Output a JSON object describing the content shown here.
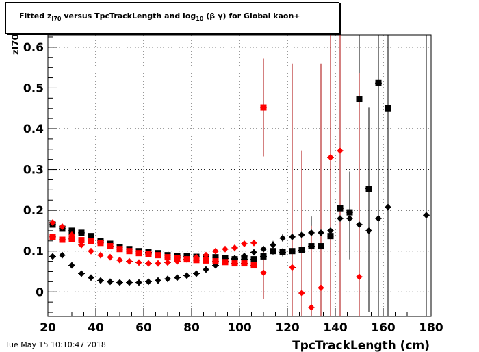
{
  "title": {
    "part1": "Fitted  z",
    "sub1": "I70",
    "part2": "  versus TpcTrackLength and log",
    "sub2": "10",
    "part3": " (β γ) for Global kaon+"
  },
  "footer": {
    "timestamp": "Tue May 15 10:10:47 2018"
  },
  "colors": {
    "black_series": "#000000",
    "red_series": "#ff0000",
    "red_errorbar": "#aa0000"
  },
  "chart_data": {
    "type": "scatter",
    "title": "Fitted  zI70  versus TpcTrackLength and log10 (β γ) for Global kaon+",
    "xlabel": "TpcTrackLength (cm)",
    "ylabel": "zI70",
    "xlim": [
      20,
      180
    ],
    "ylim": [
      -0.06,
      0.63
    ],
    "grid": true,
    "x_ticks": [
      20,
      40,
      60,
      80,
      100,
      120,
      140,
      160,
      180
    ],
    "y_ticks": [
      0,
      0.1,
      0.2,
      0.3,
      0.4,
      0.5,
      0.6
    ],
    "x_tick_labels": [
      "20",
      "40",
      "60",
      "80",
      "100",
      "120",
      "140",
      "160",
      "180"
    ],
    "y_tick_labels": [
      "0",
      "0.1",
      "0.2",
      "0.3",
      "0.4",
      "0.5",
      "0.6"
    ],
    "series": [
      {
        "marker": "square",
        "color": "#000000",
        "points": [
          [
            22,
            0.165,
            0
          ],
          [
            26,
            0.155,
            0
          ],
          [
            30,
            0.15,
            0
          ],
          [
            34,
            0.145,
            0
          ],
          [
            38,
            0.137,
            0
          ],
          [
            42,
            0.125,
            0
          ],
          [
            46,
            0.118,
            0
          ],
          [
            50,
            0.11,
            0
          ],
          [
            54,
            0.105,
            0
          ],
          [
            58,
            0.1,
            0
          ],
          [
            62,
            0.097,
            0
          ],
          [
            66,
            0.095,
            0
          ],
          [
            70,
            0.09,
            0
          ],
          [
            74,
            0.088,
            0
          ],
          [
            78,
            0.087,
            0
          ],
          [
            82,
            0.086,
            0
          ],
          [
            86,
            0.085,
            0
          ],
          [
            90,
            0.085,
            0
          ],
          [
            94,
            0.082,
            0
          ],
          [
            98,
            0.08,
            0
          ],
          [
            102,
            0.08,
            0
          ],
          [
            106,
            0.08,
            0
          ],
          [
            110,
            0.087,
            0
          ],
          [
            114,
            0.1,
            0.01
          ],
          [
            118,
            0.097,
            0.01
          ],
          [
            122,
            0.1,
            0.02
          ],
          [
            126,
            0.102,
            0.03
          ],
          [
            130,
            0.112,
            0.05
          ],
          [
            134,
            0.112,
            0.05
          ],
          [
            138,
            0.137,
            0.06
          ],
          [
            142,
            0.205,
            0.08
          ],
          [
            146,
            0.195,
            0.1
          ],
          [
            150,
            0.473,
            0.3
          ],
          [
            154,
            0.253,
            0.2
          ],
          [
            158,
            0.512,
            0.5
          ],
          [
            162,
            0.45,
            0.5
          ]
        ]
      },
      {
        "marker": "diamond",
        "color": "#000000",
        "points": [
          [
            22,
            0.087,
            0
          ],
          [
            26,
            0.09,
            0
          ],
          [
            30,
            0.065,
            0
          ],
          [
            34,
            0.045,
            0
          ],
          [
            38,
            0.035,
            0
          ],
          [
            42,
            0.028,
            0
          ],
          [
            46,
            0.025,
            0
          ],
          [
            50,
            0.023,
            0
          ],
          [
            54,
            0.023,
            0
          ],
          [
            58,
            0.023,
            0
          ],
          [
            62,
            0.025,
            0
          ],
          [
            66,
            0.028,
            0
          ],
          [
            70,
            0.032,
            0
          ],
          [
            74,
            0.035,
            0
          ],
          [
            78,
            0.04,
            0
          ],
          [
            82,
            0.045,
            0
          ],
          [
            86,
            0.055,
            0
          ],
          [
            90,
            0.065,
            0
          ],
          [
            94,
            0.075,
            0
          ],
          [
            98,
            0.082,
            0
          ],
          [
            102,
            0.088,
            0
          ],
          [
            106,
            0.097,
            0
          ],
          [
            110,
            0.105,
            0
          ],
          [
            114,
            0.115,
            0.01
          ],
          [
            118,
            0.132,
            0.01
          ],
          [
            122,
            0.135,
            0.02
          ],
          [
            126,
            0.14,
            0.03
          ],
          [
            130,
            0.145,
            0.04
          ],
          [
            134,
            0.145,
            0.05
          ],
          [
            138,
            0.15,
            0.06
          ],
          [
            142,
            0.18,
            0.07
          ],
          [
            146,
            0.18,
            0.1
          ],
          [
            150,
            0.165,
            0.15
          ],
          [
            154,
            0.15,
            0.2
          ],
          [
            158,
            0.18,
            0.45
          ],
          [
            162,
            0.208,
            0.45
          ],
          [
            178,
            0.188,
            0.5
          ]
        ]
      },
      {
        "marker": "square",
        "color": "#ff0000",
        "points": [
          [
            22,
            0.135,
            0
          ],
          [
            26,
            0.128,
            0
          ],
          [
            30,
            0.13,
            0
          ],
          [
            34,
            0.127,
            0
          ],
          [
            38,
            0.125,
            0
          ],
          [
            42,
            0.12,
            0
          ],
          [
            46,
            0.112,
            0
          ],
          [
            50,
            0.105,
            0
          ],
          [
            54,
            0.1,
            0
          ],
          [
            58,
            0.095,
            0
          ],
          [
            62,
            0.093,
            0
          ],
          [
            66,
            0.09,
            0
          ],
          [
            70,
            0.085,
            0
          ],
          [
            74,
            0.083,
            0
          ],
          [
            78,
            0.08,
            0
          ],
          [
            82,
            0.078,
            0
          ],
          [
            86,
            0.077,
            0
          ],
          [
            90,
            0.075,
            0
          ],
          [
            94,
            0.073,
            0
          ],
          [
            98,
            0.07,
            0
          ],
          [
            102,
            0.07,
            0
          ],
          [
            106,
            0.065,
            0
          ],
          [
            110,
            0.452,
            0.12
          ]
        ]
      },
      {
        "marker": "diamond",
        "color": "#ff0000",
        "points": [
          [
            22,
            0.17,
            0
          ],
          [
            26,
            0.16,
            0
          ],
          [
            30,
            0.14,
            0
          ],
          [
            34,
            0.115,
            0
          ],
          [
            38,
            0.1,
            0
          ],
          [
            42,
            0.09,
            0
          ],
          [
            46,
            0.085,
            0
          ],
          [
            50,
            0.078,
            0
          ],
          [
            54,
            0.075,
            0
          ],
          [
            58,
            0.072,
            0
          ],
          [
            62,
            0.07,
            0
          ],
          [
            66,
            0.07,
            0
          ],
          [
            70,
            0.072,
            0
          ],
          [
            74,
            0.075,
            0
          ],
          [
            78,
            0.08,
            0
          ],
          [
            82,
            0.085,
            0
          ],
          [
            86,
            0.09,
            0
          ],
          [
            90,
            0.1,
            0
          ],
          [
            94,
            0.105,
            0
          ],
          [
            98,
            0.108,
            0
          ],
          [
            102,
            0.118,
            0
          ],
          [
            106,
            0.12,
            0
          ],
          [
            110,
            0.047,
            0.065
          ],
          [
            122,
            0.06,
            0.5
          ],
          [
            126,
            -0.003,
            0.35
          ],
          [
            130,
            -0.038,
            0.2
          ],
          [
            134,
            0.01,
            0.55
          ],
          [
            138,
            0.33,
            0.5
          ],
          [
            142,
            0.346,
            0.5
          ],
          [
            150,
            0.037,
            0.5
          ]
        ]
      }
    ]
  }
}
